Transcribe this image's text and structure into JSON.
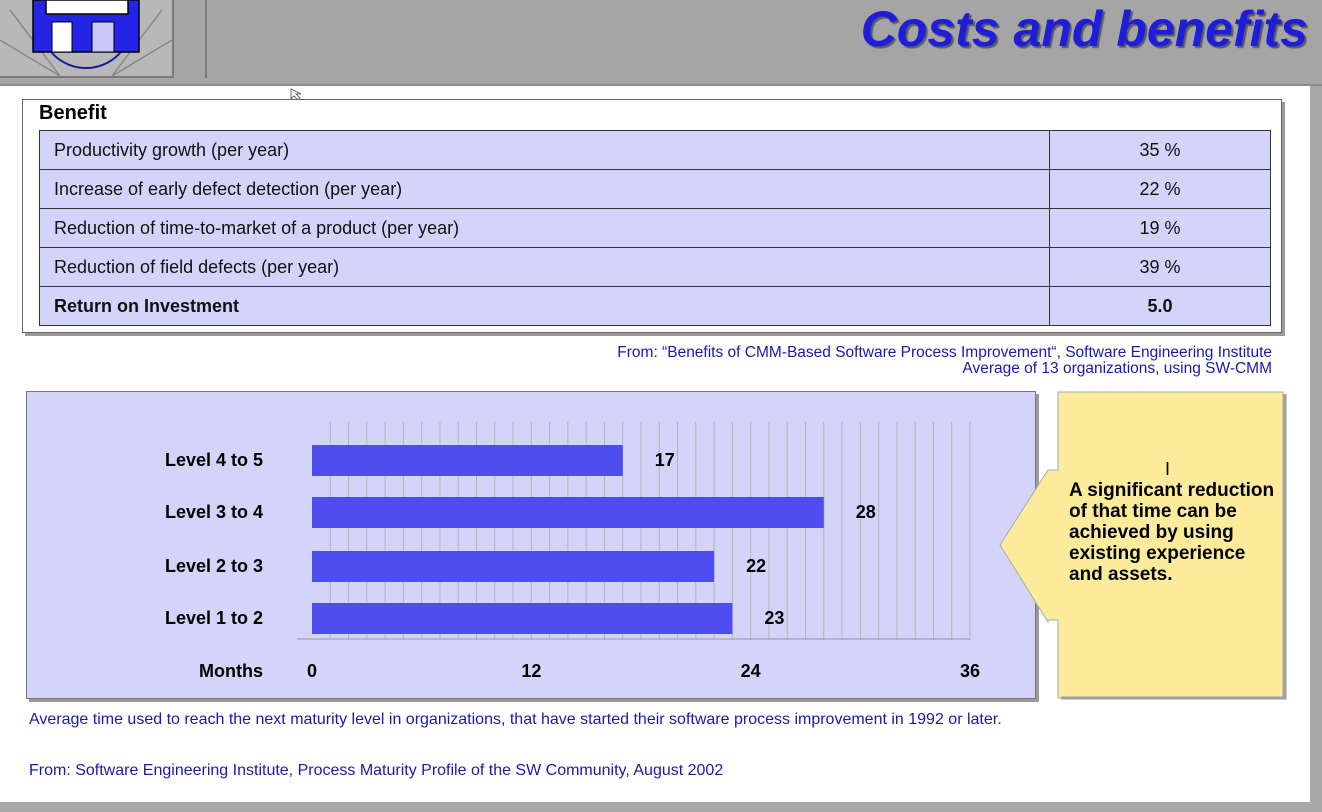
{
  "header": {
    "title": "Costs and benefits"
  },
  "benefit_table": {
    "heading": "Benefit",
    "rows": [
      {
        "label": "Productivity growth (per year)",
        "value": "35 %"
      },
      {
        "label": "Increase of early defect detection (per year)",
        "value": "22 %"
      },
      {
        "label": "Reduction of time-to-market of a product (per year)",
        "value": "19 %"
      },
      {
        "label": "Reduction of field defects (per year)",
        "value": "39 %"
      },
      {
        "label": "Return on Investment",
        "value": "5.0"
      }
    ]
  },
  "source1": {
    "line1": "From: “Benefits of CMM-Based Software Process Improvement“, Software Engineering Institute",
    "line2": "Average of 13 organizations, using SW-CMM"
  },
  "chart_data": {
    "type": "bar",
    "orientation": "horizontal",
    "categories": [
      "Level 4 to 5",
      "Level 3 to 4",
      "Level 2 to 3",
      "Level 1 to 2"
    ],
    "values": [
      17,
      28,
      22,
      23
    ],
    "xlabel": "Months",
    "xticks": [
      "0",
      "12",
      "24",
      "36"
    ],
    "xlim": [
      0,
      36
    ],
    "bar_color": "#4d4df0",
    "grid": true
  },
  "note": {
    "text": "A significant reduction of that time can be achieved by using existing experience and assets."
  },
  "caption": {
    "text": "Average time used to reach the next maturity level in organizations, that have started their software process improvement in 1992 or later."
  },
  "source2": {
    "text": "From: Software Engineering Institute, Process Maturity Profile of the SW Community, August 2002"
  },
  "colors": {
    "title": "#1d1ddb",
    "table_bg": "#d4d4fa",
    "note_bg": "#fbeb9b",
    "source_text": "#1a1aa8"
  }
}
